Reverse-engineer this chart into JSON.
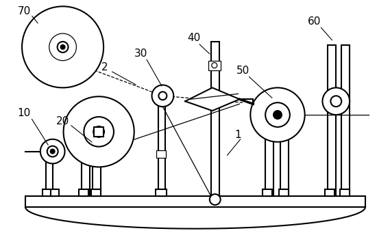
{
  "bg_color": "#ffffff",
  "line_color": "#000000",
  "lw": 1.5,
  "tlw": 0.9,
  "fig_w": 5.69,
  "fig_h": 3.41
}
